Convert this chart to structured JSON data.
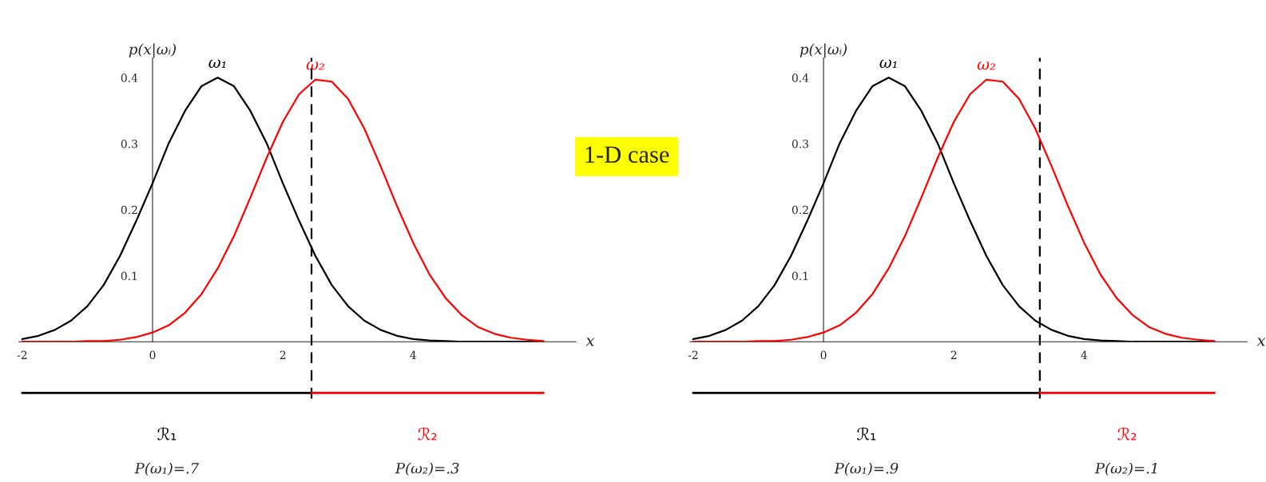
{
  "chart_data": [
    {
      "type": "line",
      "xlabel": "x",
      "ylabel": "p(x|ωᵢ)",
      "x": [
        -2,
        -1.75,
        -1.5,
        -1.25,
        -1,
        -0.75,
        -0.5,
        -0.25,
        0,
        0.25,
        0.5,
        0.75,
        1,
        1.25,
        1.5,
        1.75,
        2,
        2.25,
        2.5,
        2.75,
        3,
        3.25,
        3.5,
        3.75,
        4,
        4.25,
        4.5,
        4.75,
        5,
        5.25,
        5.5,
        5.75,
        6
      ],
      "series": [
        {
          "name": "ω₁",
          "color": "#000000",
          "values": [
            0.004,
            0.009,
            0.018,
            0.032,
            0.054,
            0.086,
            0.13,
            0.183,
            0.24,
            0.301,
            0.35,
            0.387,
            0.4,
            0.387,
            0.35,
            0.301,
            0.24,
            0.183,
            0.13,
            0.086,
            0.054,
            0.032,
            0.018,
            0.009,
            0.004,
            0.002,
            0.001,
            0,
            0,
            0,
            0,
            0,
            0
          ]
        },
        {
          "name": "ω₂",
          "color": "#ff0000",
          "values": [
            0,
            0,
            0,
            0,
            0.001,
            0.001,
            0.003,
            0.007,
            0.014,
            0.025,
            0.044,
            0.072,
            0.111,
            0.16,
            0.218,
            0.278,
            0.333,
            0.375,
            0.397,
            0.394,
            0.368,
            0.323,
            0.266,
            0.206,
            0.15,
            0.102,
            0.066,
            0.04,
            0.022,
            0.012,
            0.006,
            0.003,
            0.001
          ]
        }
      ],
      "xlim": [
        -2.05,
        6.5
      ],
      "ylim": [
        0,
        0.43
      ],
      "xticks": [
        -2,
        0,
        2,
        4
      ],
      "yticks": [
        0.1,
        0.2,
        0.3,
        0.4
      ],
      "grid": false,
      "legend": false,
      "ref_lines": [
        {
          "axis": "x",
          "value": 2.44,
          "color": "#000000",
          "line_style": "dashed"
        }
      ],
      "annotations": [
        "ℛ₁",
        "ℛ₂",
        "P(ω₁)=.7",
        "P(ω₂)=.3"
      ]
    },
    {
      "type": "other",
      "title": "1-D case"
    },
    {
      "type": "line",
      "xlabel": "x",
      "ylabel": "p(x|ωᵢ)",
      "x": [
        -2,
        -1.75,
        -1.5,
        -1.25,
        -1,
        -0.75,
        -0.5,
        -0.25,
        0,
        0.25,
        0.5,
        0.75,
        1,
        1.25,
        1.5,
        1.75,
        2,
        2.25,
        2.5,
        2.75,
        3,
        3.25,
        3.5,
        3.75,
        4,
        4.25,
        4.5,
        4.75,
        5,
        5.25,
        5.5,
        5.75,
        6
      ],
      "series": [
        {
          "name": "ω₁",
          "color": "#000000",
          "values": [
            0.004,
            0.009,
            0.018,
            0.032,
            0.054,
            0.086,
            0.13,
            0.183,
            0.24,
            0.301,
            0.35,
            0.387,
            0.4,
            0.387,
            0.35,
            0.301,
            0.24,
            0.183,
            0.13,
            0.086,
            0.054,
            0.032,
            0.018,
            0.009,
            0.004,
            0.002,
            0.001,
            0,
            0,
            0,
            0,
            0,
            0
          ]
        },
        {
          "name": "ω₂",
          "color": "#ff0000",
          "values": [
            0,
            0,
            0,
            0,
            0.001,
            0.001,
            0.003,
            0.007,
            0.014,
            0.025,
            0.044,
            0.072,
            0.111,
            0.16,
            0.218,
            0.278,
            0.333,
            0.375,
            0.397,
            0.394,
            0.368,
            0.323,
            0.266,
            0.206,
            0.15,
            0.102,
            0.066,
            0.04,
            0.022,
            0.012,
            0.006,
            0.003,
            0.001
          ]
        }
      ],
      "xlim": [
        -2.05,
        6.5
      ],
      "ylim": [
        0,
        0.43
      ],
      "xticks": [
        -2,
        0,
        2,
        4
      ],
      "yticks": [
        0.1,
        0.2,
        0.3,
        0.4
      ],
      "grid": false,
      "legend": false,
      "ref_lines": [
        {
          "axis": "x",
          "value": 3.32,
          "color": "#000000",
          "line_style": "dashed"
        }
      ],
      "annotations": [
        "ℛ₁",
        "ℛ₂",
        "P(ω₁)=.9",
        "P(ω₂)=.1"
      ]
    }
  ]
}
